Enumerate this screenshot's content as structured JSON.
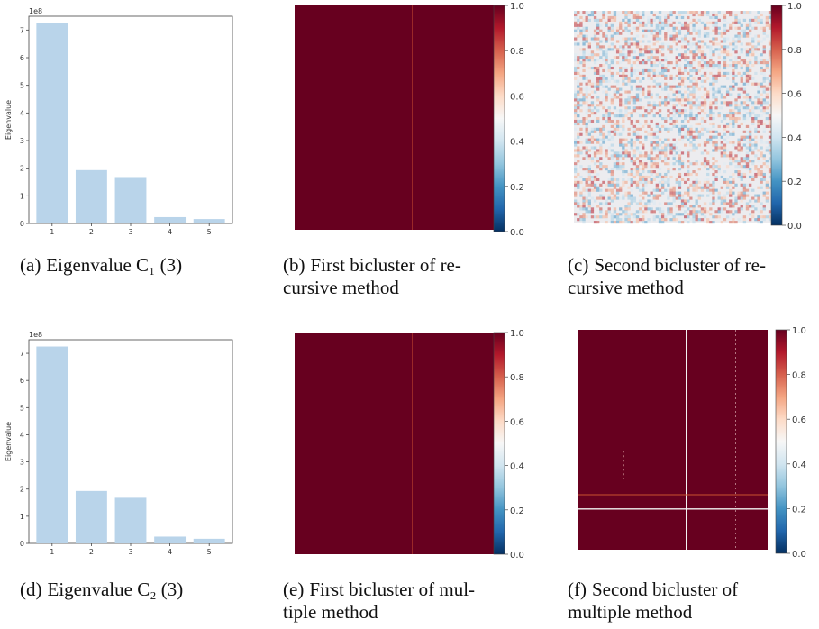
{
  "chart_data": [
    {
      "id": "a",
      "type": "bar",
      "categories": [
        "1",
        "2",
        "3",
        "4",
        "5"
      ],
      "values": [
        7.25,
        1.93,
        1.68,
        0.23,
        0.16
      ],
      "scale_label": "1e8",
      "ylabel": "Eigenvalue",
      "ylim": [
        0,
        7.5
      ],
      "yticks": [
        "0",
        "1",
        "2",
        "3",
        "4",
        "5",
        "6",
        "7"
      ],
      "bar_color": "#b9d4ea",
      "caption_label": "(a)",
      "caption_text": "Eigenvalue C₁ (3)"
    },
    {
      "id": "b",
      "type": "heatmap",
      "pattern": "uniform",
      "value": 1.0,
      "colorbar_ticks": [
        "0.0",
        "0.2",
        "0.4",
        "0.6",
        "0.8",
        "1.0"
      ],
      "caption_label": "(b)",
      "caption_line1": "First bicluster of re-",
      "caption_line2": "cursive method"
    },
    {
      "id": "c",
      "type": "heatmap",
      "pattern": "noise",
      "colorbar_ticks": [
        "0.0",
        "0.2",
        "0.4",
        "0.6",
        "0.8",
        "1.0"
      ],
      "caption_label": "(c)",
      "caption_line1": "Second bicluster of re-",
      "caption_line2": "cursive method"
    },
    {
      "id": "d",
      "type": "bar",
      "categories": [
        "1",
        "2",
        "3",
        "4",
        "5"
      ],
      "values": [
        7.25,
        1.93,
        1.68,
        0.25,
        0.17
      ],
      "scale_label": "1e8",
      "ylabel": "Eigenvalue",
      "ylim": [
        0,
        7.5
      ],
      "yticks": [
        "0",
        "1",
        "2",
        "3",
        "4",
        "5",
        "6",
        "7"
      ],
      "bar_color": "#b9d4ea",
      "caption_label": "(d)",
      "caption_text": "Eigenvalue C₂ (3)"
    },
    {
      "id": "e",
      "type": "heatmap",
      "pattern": "uniform",
      "value": 1.0,
      "colorbar_ticks": [
        "0.0",
        "0.2",
        "0.4",
        "0.6",
        "0.8",
        "1.0"
      ],
      "caption_label": "(e)",
      "caption_line1": "First bicluster of mul-",
      "caption_line2": "tiple method"
    },
    {
      "id": "f",
      "type": "heatmap",
      "pattern": "blocks",
      "colorbar_ticks": [
        "0.0",
        "0.2",
        "0.4",
        "0.6",
        "0.8",
        "1.0"
      ],
      "caption_label": "(f)",
      "caption_line1": "Second bicluster of",
      "caption_line2": "multiple method"
    }
  ],
  "colors": {
    "heat_high": "#67001f",
    "heat_mid": "#f7f7f7",
    "heat_low": "#053061"
  }
}
